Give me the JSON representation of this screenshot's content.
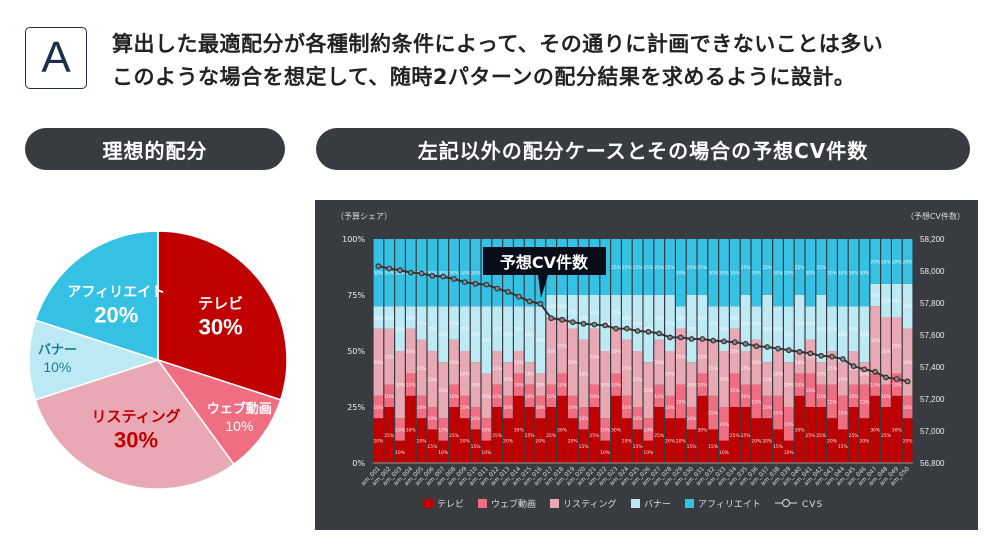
{
  "header": {
    "badge": "A",
    "line1": "算出した最適配分が各種制約条件によって、その通りに計画できないことは多い",
    "line2": "このような場合を想定して、随時2パターンの配分結果を求めるように設計。"
  },
  "left_pill": "理想的配分",
  "right_pill": "左記以外の配分ケースとその場合の予想CV件数",
  "colors": {
    "tv": "#c00000",
    "web": "#f06e82",
    "listing": "#e8a8b4",
    "banner": "#bde9f5",
    "affiliate": "#35c1e4",
    "panel": "#383b40"
  },
  "chart_data": [
    {
      "type": "pie",
      "slices": [
        {
          "label": "テレビ",
          "value": 30,
          "text": "30%"
        },
        {
          "label": "ウェブ動画",
          "value": 10,
          "text": "10%"
        },
        {
          "label": "リスティング",
          "value": 30,
          "text": "30%"
        },
        {
          "label": "バナー",
          "value": 10,
          "text": "10%"
        },
        {
          "label": "アフィリエイト",
          "value": 20,
          "text": "20%"
        }
      ]
    },
    {
      "type": "bar",
      "stacked": true,
      "ylabel_left": "（予算シェア）",
      "ylabel_right": "（予想CV件数）",
      "y_left_ticks": [
        "0%",
        "25%",
        "50%",
        "75%",
        "100%"
      ],
      "y_right_ticks": [
        "56,800",
        "57,000",
        "57,200",
        "57,400",
        "57,600",
        "57,800",
        "58,000",
        "58,200"
      ],
      "ylim_left": [
        0,
        100
      ],
      "ylim_right": [
        56800,
        58200
      ],
      "callout": "予想CV件数",
      "categories": [
        "am_001",
        "am_002",
        "am_003",
        "am_004",
        "am_005",
        "am_006",
        "am_007",
        "am_008",
        "am_009",
        "am_010",
        "am_011",
        "am_012",
        "am_013",
        "am_014",
        "am_015",
        "am_016",
        "am_017",
        "am_018",
        "am_019",
        "am_020",
        "am_021",
        "am_022",
        "am_023",
        "am_024",
        "am_025",
        "am_026",
        "am_027",
        "am_028",
        "am_029",
        "am_030",
        "am_031",
        "am_032",
        "am_033",
        "am_034",
        "am_035",
        "am_036",
        "am_037",
        "am_038",
        "am_039",
        "am_040",
        "am_041",
        "am_042",
        "am_043",
        "am_044",
        "am_045",
        "am_046",
        "am_047",
        "am_048",
        "am_049",
        "am_050"
      ],
      "series": [
        {
          "name": "テレビ",
          "values": [
            20,
            25,
            10,
            30,
            20,
            15,
            10,
            25,
            20,
            15,
            10,
            25,
            20,
            30,
            25,
            20,
            25,
            30,
            20,
            15,
            25,
            10,
            30,
            20,
            15,
            10,
            25,
            20,
            20,
            15,
            30,
            15,
            10,
            25,
            25,
            20,
            20,
            15,
            10,
            30,
            25,
            25,
            20,
            15,
            25,
            20,
            30,
            25,
            30,
            20
          ]
        },
        {
          "name": "ウェブ動画",
          "values": [
            10,
            10,
            10,
            10,
            10,
            10,
            10,
            10,
            10,
            10,
            10,
            10,
            10,
            10,
            10,
            10,
            10,
            10,
            10,
            10,
            10,
            10,
            10,
            10,
            10,
            10,
            10,
            10,
            15,
            10,
            10,
            15,
            15,
            15,
            10,
            15,
            10,
            15,
            15,
            10,
            15,
            10,
            15,
            15,
            10,
            15,
            10,
            10,
            10,
            10
          ]
        },
        {
          "name": "リスティング",
          "values": [
            30,
            25,
            30,
            20,
            25,
            25,
            25,
            20,
            20,
            20,
            20,
            15,
            15,
            10,
            10,
            10,
            30,
            25,
            30,
            30,
            25,
            30,
            20,
            25,
            25,
            25,
            20,
            20,
            25,
            20,
            15,
            25,
            25,
            20,
            15,
            20,
            15,
            20,
            20,
            10,
            15,
            10,
            15,
            15,
            15,
            10,
            30,
            30,
            25,
            30
          ]
        },
        {
          "name": "バナー",
          "values": [
            10,
            10,
            20,
            10,
            15,
            20,
            25,
            15,
            20,
            25,
            30,
            20,
            25,
            20,
            25,
            30,
            10,
            10,
            15,
            20,
            15,
            25,
            15,
            20,
            25,
            30,
            20,
            25,
            10,
            30,
            20,
            15,
            20,
            10,
            25,
            15,
            30,
            20,
            25,
            25,
            15,
            30,
            20,
            25,
            20,
            25,
            10,
            15,
            15,
            20
          ]
        },
        {
          "name": "アフィリエイト",
          "values": [
            30,
            30,
            30,
            30,
            30,
            30,
            30,
            30,
            30,
            30,
            30,
            30,
            30,
            30,
            30,
            30,
            25,
            25,
            25,
            25,
            25,
            25,
            25,
            25,
            25,
            25,
            25,
            25,
            30,
            25,
            25,
            30,
            30,
            30,
            25,
            30,
            25,
            30,
            30,
            25,
            30,
            25,
            30,
            30,
            30,
            30,
            20,
            20,
            20,
            20
          ]
        },
        {
          "name": "CVS",
          "type": "line",
          "axis": "right",
          "values": [
            58030,
            58015,
            58005,
            57990,
            57985,
            57970,
            57965,
            57950,
            57930,
            57920,
            57915,
            57890,
            57870,
            57840,
            57810,
            57795,
            57705,
            57695,
            57680,
            57670,
            57665,
            57660,
            57640,
            57640,
            57625,
            57620,
            57610,
            57585,
            57585,
            57575,
            57575,
            57565,
            57560,
            57555,
            57545,
            57530,
            57525,
            57515,
            57505,
            57495,
            57485,
            57470,
            57465,
            57450,
            57405,
            57385,
            57370,
            57335,
            57325,
            57310
          ]
        }
      ],
      "legend": [
        "テレビ",
        "ウェブ動画",
        "リスティング",
        "バナー",
        "アフィリエイト",
        "CVS"
      ],
      "legend_position": "bottom"
    }
  ]
}
